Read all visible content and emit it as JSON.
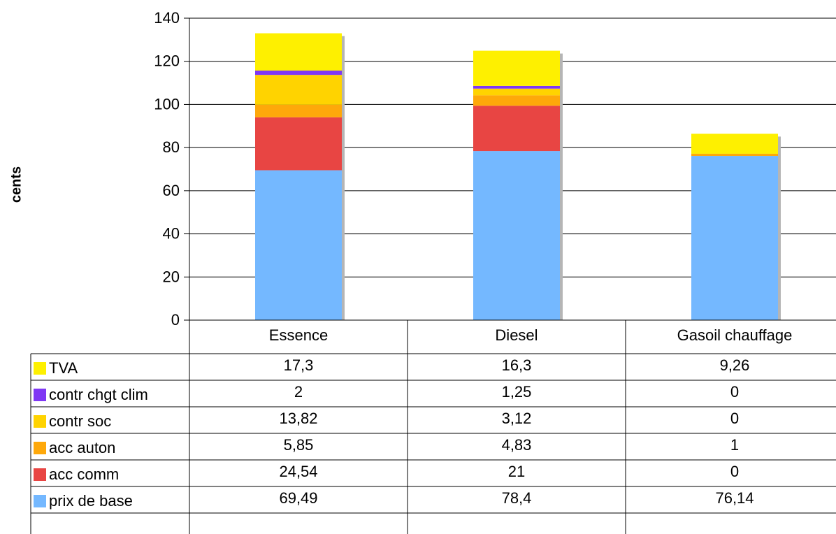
{
  "chart_data": {
    "type": "bar",
    "stacked": true,
    "title": "",
    "xlabel": "",
    "ylabel": "cents",
    "ylim": [
      0,
      140
    ],
    "yticks": [
      "0",
      "20",
      "40",
      "60",
      "80",
      "100",
      "120",
      "140"
    ],
    "grid": true,
    "legend": "data table",
    "categories": [
      "Essence",
      "Diesel",
      "Gasoil chauffage"
    ],
    "series": [
      {
        "name": "prix de base",
        "values": [
          69.49,
          78.4,
          76.14
        ],
        "labels": [
          "69,49",
          "78,4",
          "76,14"
        ],
        "color": "#74b8ff"
      },
      {
        "name": "acc comm",
        "values": [
          24.54,
          21,
          0
        ],
        "labels": [
          "24,54",
          "21",
          "0"
        ],
        "color": "#e84543"
      },
      {
        "name": "acc auton",
        "values": [
          5.85,
          4.83,
          1
        ],
        "labels": [
          "5,85",
          "4,83",
          "1"
        ],
        "color": "#fea80a"
      },
      {
        "name": "contr soc",
        "values": [
          13.82,
          3.12,
          0
        ],
        "labels": [
          "13,82",
          "3,12",
          "0"
        ],
        "color": "#ffd300"
      },
      {
        "name": "contr chgt clim",
        "values": [
          2,
          1.25,
          0
        ],
        "labels": [
          "2",
          "1,25",
          "0"
        ],
        "color": "#7f38f4"
      },
      {
        "name": "TVA",
        "values": [
          17.3,
          16.3,
          9.26
        ],
        "labels": [
          "17,3",
          "16,3",
          "9,26"
        ],
        "color": "#fef000"
      }
    ]
  }
}
